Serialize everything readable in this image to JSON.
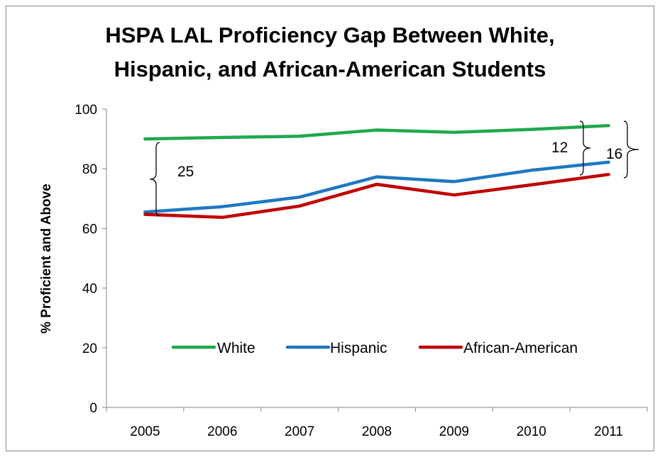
{
  "chart_data": {
    "type": "line",
    "title_lines": [
      "HSPA LAL Proficiency Gap Between White,",
      "Hispanic, and African-American Students"
    ],
    "xlabel": "",
    "ylabel": "% Proficient and Above",
    "x": [
      "2005",
      "2006",
      "2007",
      "2008",
      "2009",
      "2010",
      "2011"
    ],
    "ylim": [
      0,
      100
    ],
    "yticks": [
      0,
      20,
      40,
      60,
      80,
      100
    ],
    "grid": false,
    "legend_position": "inside-bottom",
    "series": [
      {
        "name": "White",
        "color": "#1fa84f",
        "values": [
          90.0,
          90.5,
          90.9,
          93.0,
          92.2,
          93.2,
          94.5
        ]
      },
      {
        "name": "Hispanic",
        "color": "#1f77c0",
        "values": [
          65.5,
          67.3,
          70.5,
          77.3,
          75.7,
          79.5,
          82.2
        ]
      },
      {
        "name": "African-American",
        "color": "#c00000",
        "values": [
          64.7,
          63.7,
          67.5,
          74.8,
          71.2,
          74.6,
          78.1
        ]
      }
    ],
    "annotations": [
      {
        "text": "25",
        "bracket_from": 64.7,
        "bracket_to": 90.0,
        "at": "2005"
      },
      {
        "text": "12",
        "bracket_from": 82.2,
        "bracket_to": 94.5,
        "at": "2011"
      },
      {
        "text": "16",
        "bracket_from": 78.1,
        "bracket_to": 94.5,
        "at": "2011"
      }
    ]
  }
}
